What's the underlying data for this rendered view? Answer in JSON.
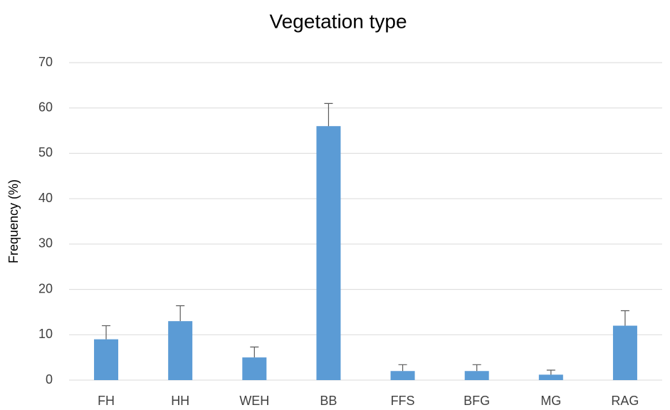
{
  "chart_data": {
    "type": "bar",
    "title": "Vegetation type",
    "y_label": "Frequency (%)",
    "categories": [
      "FH",
      "HH",
      "WEH",
      "BB",
      "FFS",
      "BFG",
      "MG",
      "RAG"
    ],
    "values": [
      9,
      13,
      5,
      56,
      2,
      2,
      1.2,
      12
    ],
    "errors": [
      3,
      3.4,
      2.3,
      5,
      1.4,
      1.4,
      1,
      3.3
    ],
    "color": "#5b9bd5",
    "ylim": [
      0,
      70
    ],
    "yticks": [
      0,
      10,
      20,
      30,
      40,
      50,
      60,
      70
    ],
    "grid": true
  }
}
